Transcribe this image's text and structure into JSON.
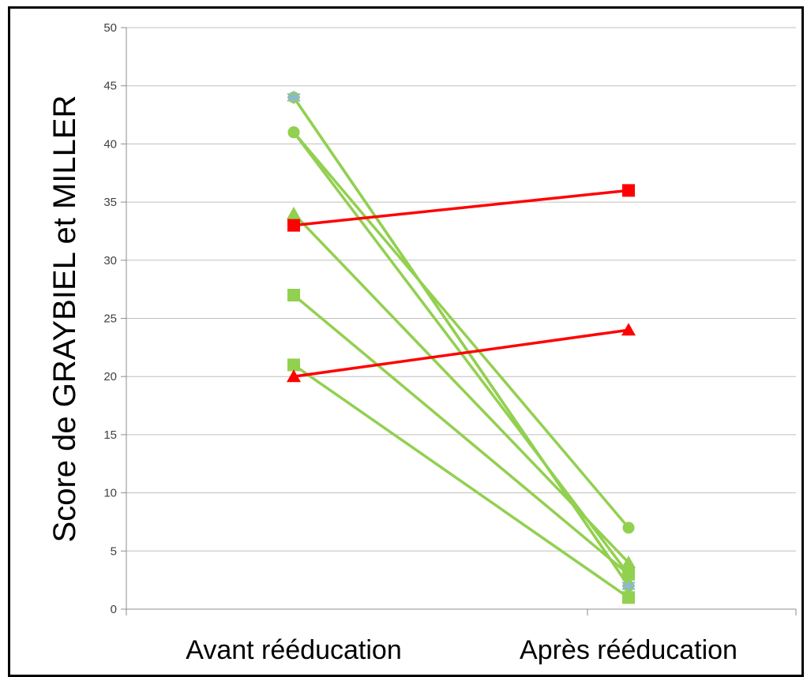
{
  "chart_data": {
    "type": "line",
    "title": "",
    "xlabel": "",
    "ylabel": "Score de GRAYBIEL et MILLER",
    "categories": [
      "Avant rééducation",
      "Après rééducation"
    ],
    "ylim": [
      0,
      50
    ],
    "yticks": [
      0,
      5,
      10,
      15,
      20,
      25,
      30,
      35,
      40,
      45,
      50
    ],
    "grid": true,
    "legend": "none",
    "series": [
      {
        "values": [
          44,
          2
        ],
        "color": "#92d050",
        "marker": "circle",
        "marker_color": "#92d050"
      },
      {
        "values": [
          44,
          2
        ],
        "color": "#92d050",
        "marker": "star",
        "marker_color": "#8db4e2"
      },
      {
        "values": [
          41,
          7
        ],
        "color": "#92d050",
        "marker": "circle",
        "marker_color": "#92d050"
      },
      {
        "values": [
          41,
          3
        ],
        "color": "#92d050",
        "marker": "circle",
        "marker_color": "#92d050"
      },
      {
        "values": [
          34,
          4
        ],
        "color": "#92d050",
        "marker": "triangle",
        "marker_color": "#92d050"
      },
      {
        "values": [
          27,
          3
        ],
        "color": "#92d050",
        "marker": "square",
        "marker_color": "#92d050"
      },
      {
        "values": [
          21,
          1
        ],
        "color": "#92d050",
        "marker": "square",
        "marker_color": "#92d050"
      },
      {
        "values": [
          33,
          36
        ],
        "color": "#ff0000",
        "marker": "square",
        "marker_color": "#ff0000"
      },
      {
        "values": [
          20,
          24
        ],
        "color": "#ff0000",
        "marker": "triangle",
        "marker_color": "#ff0000"
      }
    ]
  }
}
